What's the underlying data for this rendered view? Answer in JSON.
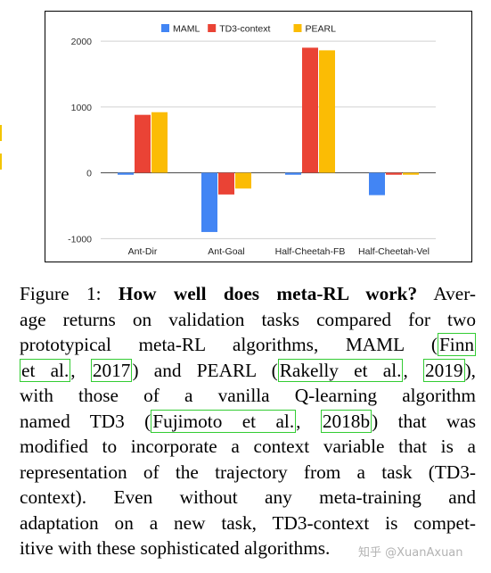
{
  "chart_data": {
    "type": "bar",
    "categories": [
      "Ant-Dir",
      "Ant-Goal",
      "Half-Cheetah-FB",
      "Half-Cheetah-Vel"
    ],
    "series": [
      {
        "name": "MAML",
        "color": "#4285f4",
        "values": [
          -30,
          -900,
          -30,
          -340
        ]
      },
      {
        "name": "TD3-context",
        "color": "#ea4335",
        "values": [
          880,
          -330,
          1900,
          -30
        ]
      },
      {
        "name": "PEARL",
        "color": "#fbbc04",
        "values": [
          920,
          -240,
          1860,
          -30
        ]
      }
    ],
    "yticks": [
      -1000,
      0,
      1000,
      2000
    ],
    "ylim": [
      -1050,
      2150
    ],
    "legend": "top",
    "grid": true
  },
  "caption": {
    "lines": [
      [
        {
          "t": "Figure 1: "
        },
        {
          "t": "How well does meta-RL work?",
          "b": true
        },
        {
          "t": " Aver-"
        }
      ],
      [
        {
          "t": "age returns on validation tasks compared for two"
        }
      ],
      [
        {
          "t": "prototypical meta-RL algorithms, MAML ("
        },
        {
          "t": "Finn",
          "c": true
        }
      ],
      [
        {
          "t": "et al.",
          "c": true
        },
        {
          "t": ", "
        },
        {
          "t": "2017",
          "c": true
        },
        {
          "t": ") and PEARL ("
        },
        {
          "t": "Rakelly et al.",
          "c": true
        },
        {
          "t": ", "
        },
        {
          "t": "2019",
          "c": true
        },
        {
          "t": "),"
        }
      ],
      [
        {
          "t": "with those of a vanilla Q-learning algorithm"
        }
      ],
      [
        {
          "t": "named TD3 ("
        },
        {
          "t": "Fujimoto et al.",
          "c": true
        },
        {
          "t": ", "
        },
        {
          "t": "2018b",
          "c": true
        },
        {
          "t": ") that was"
        }
      ],
      [
        {
          "t": "modified to incorporate a context variable that is a"
        }
      ],
      [
        {
          "t": "representation of the trajectory from a task (TD3-"
        }
      ],
      [
        {
          "t": "context).   Even without any meta-training and"
        }
      ],
      [
        {
          "t": "adaptation on a new task, TD3-context is compet-"
        }
      ],
      [
        {
          "t": "itive with these sophisticated algorithms."
        }
      ]
    ]
  },
  "watermark": "知乎 @XuanAxuan"
}
